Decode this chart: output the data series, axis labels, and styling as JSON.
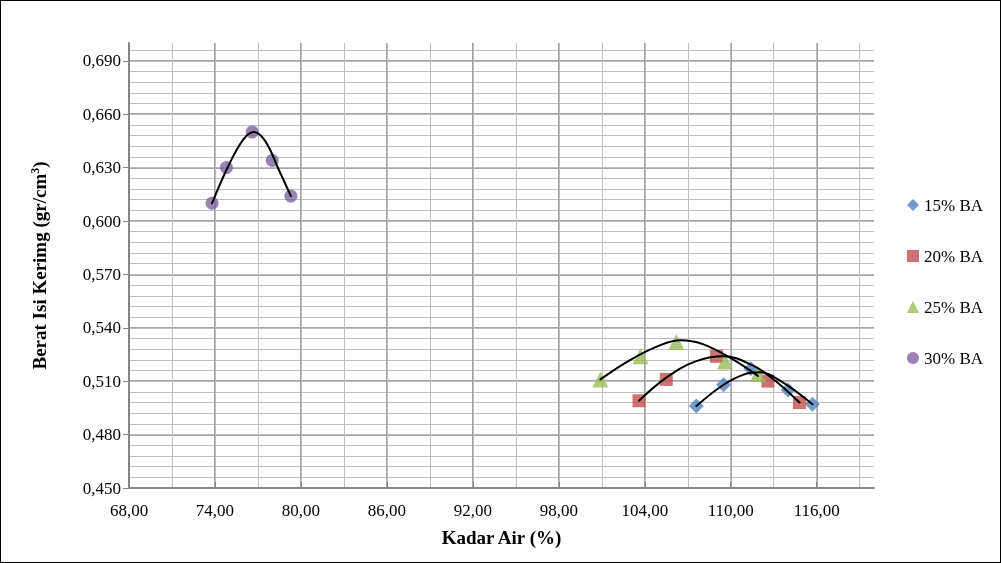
{
  "chart_data": {
    "type": "scatter",
    "xlabel": "Kadar Air (%)",
    "ylabel": "Berat Isi Kerimg (gr/cm$^{3}$)",
    "xlim": [
      68,
      120
    ],
    "ylim": [
      0.45,
      0.7
    ],
    "xticks": [
      {
        "value": 68,
        "label": "68,00"
      },
      {
        "value": 74,
        "label": "74,00"
      },
      {
        "value": 80,
        "label": "80,00"
      },
      {
        "value": 86,
        "label": "86,00"
      },
      {
        "value": 92,
        "label": "92,00"
      },
      {
        "value": 98,
        "label": "98,00"
      },
      {
        "value": 104,
        "label": "104,00"
      },
      {
        "value": 110,
        "label": "110,00"
      },
      {
        "value": 116,
        "label": "116,00"
      }
    ],
    "yticks": [
      {
        "value": 0.45,
        "label": "0,450"
      },
      {
        "value": 0.48,
        "label": "0,480"
      },
      {
        "value": 0.51,
        "label": "0,510"
      },
      {
        "value": 0.54,
        "label": "0,540"
      },
      {
        "value": 0.57,
        "label": "0,570"
      },
      {
        "value": 0.6,
        "label": "0,600"
      },
      {
        "value": 0.63,
        "label": "0,630"
      },
      {
        "value": 0.66,
        "label": "0,660"
      },
      {
        "value": 0.69,
        "label": "0,690"
      }
    ],
    "grid": true,
    "legend": "right",
    "series": [
      {
        "name": "15% BA",
        "color": "#4f81bd",
        "marker": "diamond",
        "x": [
          107.6,
          109.5,
          111.4,
          114.0,
          115.7
        ],
        "values": [
          0.496,
          0.508,
          0.517,
          0.505,
          0.497
        ]
      },
      {
        "name": "20% BA",
        "color": "#c0504d",
        "marker": "square",
        "x": [
          103.6,
          105.5,
          109.0,
          112.6,
          114.8
        ],
        "values": [
          0.499,
          0.511,
          0.524,
          0.51,
          0.498
        ]
      },
      {
        "name": "25% BA",
        "color": "#9bbb59",
        "marker": "triangle",
        "x": [
          100.9,
          103.7,
          106.2,
          109.6,
          111.9
        ],
        "values": [
          0.511,
          0.524,
          0.532,
          0.521,
          0.514
        ]
      },
      {
        "name": "30% BA",
        "color": "#8064a2",
        "marker": "circle",
        "x": [
          73.8,
          74.8,
          76.6,
          78.0,
          79.3
        ],
        "values": [
          0.61,
          0.63,
          0.65,
          0.634,
          0.614
        ]
      },
      {
        "type": "line",
        "color": "#000000",
        "marker": "none",
        "x": [
          107.6,
          109.5,
          111,
          112,
          113.5,
          115.7
        ],
        "values": [
          0.496,
          0.508,
          0.514,
          0.515,
          0.51,
          0.497
        ]
      },
      {
        "type": "line",
        "color": "#000000",
        "marker": "none",
        "x": [
          103.6,
          105.5,
          107.5,
          109.5,
          111.5,
          113,
          114.8
        ],
        "values": [
          0.499,
          0.512,
          0.521,
          0.524,
          0.519,
          0.511,
          0.498
        ]
      },
      {
        "type": "line",
        "color": "#000000",
        "marker": "none",
        "x": [
          100.9,
          103,
          105,
          106.5,
          108,
          110,
          111.9
        ],
        "values": [
          0.511,
          0.522,
          0.53,
          0.533,
          0.531,
          0.523,
          0.513
        ]
      },
      {
        "type": "line",
        "color": "#000000",
        "marker": "none",
        "x": [
          73.8,
          75,
          76,
          76.7,
          77.5,
          78.5,
          79.3
        ],
        "values": [
          0.61,
          0.632,
          0.646,
          0.65,
          0.645,
          0.628,
          0.614
        ]
      }
    ]
  }
}
